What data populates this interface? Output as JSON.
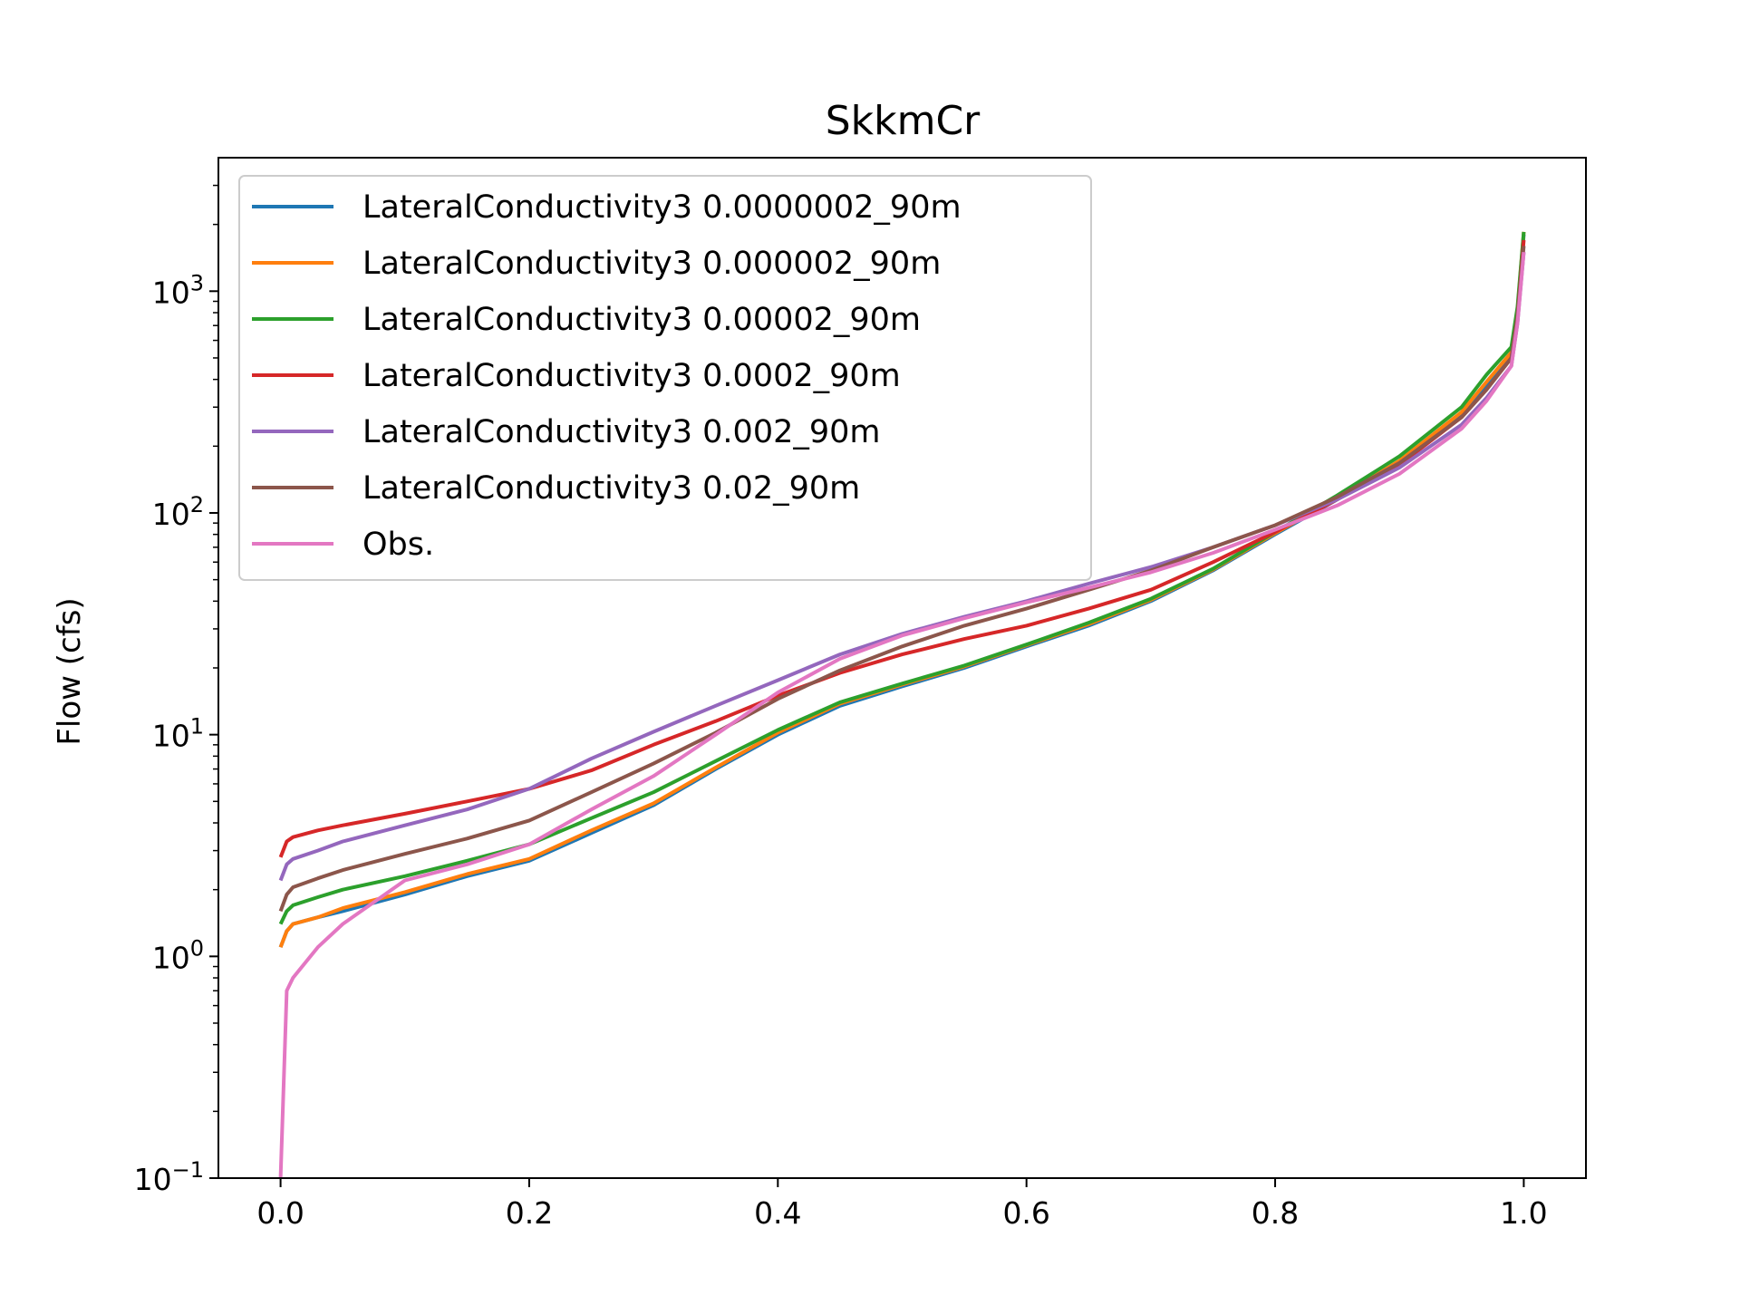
{
  "chart_data": {
    "type": "line",
    "title": "SkkmCr",
    "xlabel": "",
    "ylabel": "Flow (cfs)",
    "y_scale": "log",
    "xlim": [
      -0.05,
      1.05
    ],
    "ylim": [
      0.1,
      4000
    ],
    "x_ticks": [
      {
        "value": 0.0,
        "label": "0.0"
      },
      {
        "value": 0.2,
        "label": "0.2"
      },
      {
        "value": 0.4,
        "label": "0.4"
      },
      {
        "value": 0.6,
        "label": "0.6"
      },
      {
        "value": 0.8,
        "label": "0.8"
      },
      {
        "value": 1.0,
        "label": "1.0"
      }
    ],
    "y_ticks": [
      {
        "value": 0.1,
        "base": "10",
        "exp": "−1"
      },
      {
        "value": 1,
        "base": "10",
        "exp": "0"
      },
      {
        "value": 10,
        "base": "10",
        "exp": "1"
      },
      {
        "value": 100,
        "base": "10",
        "exp": "2"
      },
      {
        "value": 1000,
        "base": "10",
        "exp": "3"
      }
    ],
    "grid": false,
    "legend_position": "top-left",
    "x": [
      0.0,
      0.005,
      0.01,
      0.03,
      0.05,
      0.1,
      0.15,
      0.2,
      0.25,
      0.3,
      0.35,
      0.4,
      0.45,
      0.5,
      0.55,
      0.6,
      0.65,
      0.7,
      0.75,
      0.8,
      0.85,
      0.9,
      0.95,
      0.97,
      0.99,
      0.995,
      1.0
    ],
    "series": [
      {
        "name": "LateralConductivity3 0.0000002_90m",
        "color": "#1f77b4",
        "values": [
          1.1,
          1.3,
          1.4,
          1.5,
          1.6,
          1.9,
          2.3,
          2.7,
          3.6,
          4.8,
          7.0,
          10.0,
          13.5,
          16.5,
          20.0,
          25.0,
          31.0,
          40.0,
          55.0,
          80.0,
          115.0,
          170.0,
          280.0,
          380.0,
          520.0,
          800.0,
          1800.0
        ]
      },
      {
        "name": "LateralConductivity3 0.000002_90m",
        "color": "#ff7f0e",
        "values": [
          1.1,
          1.3,
          1.4,
          1.5,
          1.65,
          1.95,
          2.35,
          2.75,
          3.7,
          4.9,
          7.1,
          10.2,
          13.8,
          16.8,
          20.3,
          25.3,
          31.5,
          40.5,
          55.5,
          81.0,
          116.0,
          172.0,
          285.0,
          390.0,
          530.0,
          820.0,
          1850.0
        ]
      },
      {
        "name": "LateralConductivity3 0.00002_90m",
        "color": "#2ca02c",
        "values": [
          1.4,
          1.6,
          1.7,
          1.85,
          2.0,
          2.3,
          2.7,
          3.2,
          4.2,
          5.5,
          7.6,
          10.5,
          14.0,
          17.0,
          20.5,
          25.5,
          32.0,
          41.0,
          56.0,
          82.0,
          120.0,
          180.0,
          300.0,
          420.0,
          560.0,
          850.0,
          1850.0
        ]
      },
      {
        "name": "LateralConductivity3 0.0002_90m",
        "color": "#d62728",
        "values": [
          2.8,
          3.3,
          3.45,
          3.7,
          3.9,
          4.4,
          5.0,
          5.7,
          6.9,
          9.0,
          11.5,
          15.0,
          19.0,
          23.0,
          27.0,
          31.0,
          37.0,
          45.0,
          60.0,
          82.0,
          115.0,
          165.0,
          270.0,
          360.0,
          500.0,
          780.0,
          1700.0
        ]
      },
      {
        "name": "LateralConductivity3 0.002_90m",
        "color": "#9467bd",
        "values": [
          2.2,
          2.6,
          2.75,
          3.0,
          3.3,
          3.9,
          4.6,
          5.7,
          7.8,
          10.3,
          13.5,
          17.6,
          23.0,
          28.5,
          34.0,
          40.0,
          48.0,
          57.0,
          70.0,
          88.0,
          115.0,
          160.0,
          250.0,
          330.0,
          460.0,
          720.0,
          1500.0
        ]
      },
      {
        "name": "LateralConductivity3 0.02_90m",
        "color": "#8c564b",
        "values": [
          1.6,
          1.9,
          2.05,
          2.25,
          2.45,
          2.9,
          3.4,
          4.1,
          5.5,
          7.4,
          10.2,
          14.5,
          19.5,
          25.0,
          31.0,
          37.0,
          45.0,
          55.0,
          70.0,
          88.0,
          118.0,
          168.0,
          270.0,
          360.0,
          500.0,
          780.0,
          1600.0
        ]
      },
      {
        "name": "Obs.",
        "color": "#e377c2",
        "values": [
          0.1,
          0.7,
          0.8,
          1.1,
          1.4,
          2.2,
          2.6,
          3.2,
          4.6,
          6.5,
          10.0,
          15.5,
          22.0,
          28.0,
          33.5,
          39.5,
          46.0,
          54.0,
          66.0,
          84.0,
          108.0,
          150.0,
          240.0,
          320.0,
          460.0,
          720.0,
          1500.0
        ]
      }
    ]
  }
}
